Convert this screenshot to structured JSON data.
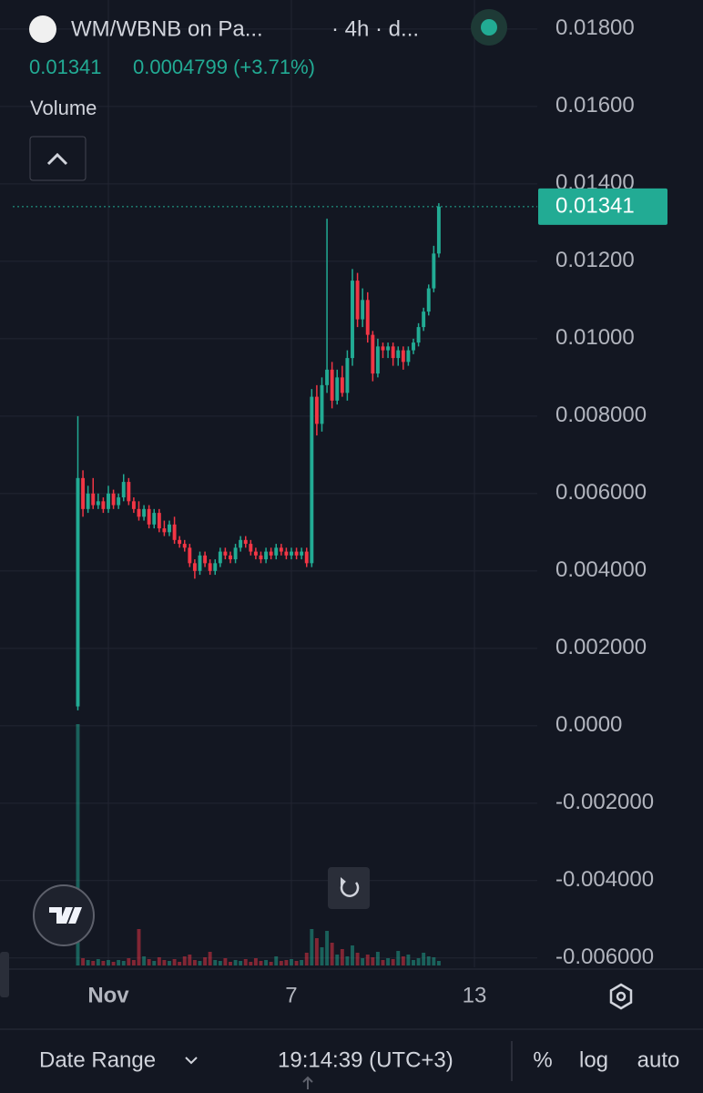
{
  "header": {
    "title": "WM/WBNB on Pa...",
    "interval": "· 4h · d...",
    "price": "0.01341",
    "change": "0.0004799 (+3.71%)",
    "volume_label": "Volume"
  },
  "footer": {
    "date_range": "Date Range",
    "time": "19:14:39 (UTC+3)",
    "percent": "%",
    "log": "log",
    "auto": "auto"
  },
  "chart_data": {
    "type": "candlestick",
    "up_color": "#22ab94",
    "down_color": "#f23645",
    "grid": true,
    "last_price": 0.01341,
    "xlim": [
      -2.552,
      15.06
    ],
    "xticks": [
      {
        "value": 1,
        "label": "Nov"
      },
      7,
      13
    ],
    "ylim": [
      -0.00624,
      0.01875
    ],
    "yticks": [
      {
        "value": 0.018,
        "label": "0.01800"
      },
      {
        "value": 0.016,
        "label": "0.01600"
      },
      {
        "value": 0.014,
        "label": "0.01400"
      },
      {
        "value": 0.012,
        "label": "0.01200"
      },
      {
        "value": 0.01,
        "label": "0.01000"
      },
      {
        "value": 0.008,
        "label": "0.008000"
      },
      {
        "value": 0.006,
        "label": "0.006000"
      },
      {
        "value": 0.004,
        "label": "0.004000"
      },
      {
        "value": 0.002,
        "label": "0.002000"
      },
      {
        "value": 0,
        "label": "0.0000"
      },
      {
        "value": -0.002,
        "label": "-0.002000"
      },
      {
        "value": -0.004,
        "label": "-0.004000"
      },
      {
        "value": -0.006,
        "label": "-0.006000"
      }
    ],
    "x": [
      0,
      0.167,
      0.333,
      0.5,
      0.667,
      0.833,
      1,
      1.167,
      1.333,
      1.5,
      1.667,
      1.833,
      2,
      2.167,
      2.333,
      2.5,
      2.667,
      2.833,
      3,
      3.167,
      3.333,
      3.5,
      3.667,
      3.833,
      4,
      4.167,
      4.333,
      4.5,
      4.667,
      4.833,
      5,
      5.167,
      5.333,
      5.5,
      5.667,
      5.833,
      6,
      6.167,
      6.333,
      6.5,
      6.667,
      6.833,
      7,
      7.167,
      7.333,
      7.5,
      7.667,
      7.833,
      8,
      8.167,
      8.333,
      8.5,
      8.667,
      8.833,
      9,
      9.167,
      9.333,
      9.5,
      9.667,
      9.833,
      10,
      10.167,
      10.333,
      10.5,
      10.667,
      10.833,
      11,
      11.167,
      11.333,
      11.5,
      11.667,
      11.833
    ],
    "open": [
      0.0005,
      0.0064,
      0.0056,
      0.006,
      0.0057,
      0.0058,
      0.0056,
      0.006,
      0.0057,
      0.0059,
      0.0063,
      0.0058,
      0.0056,
      0.0054,
      0.0056,
      0.0052,
      0.0055,
      0.0051,
      0.005,
      0.0052,
      0.0048,
      0.0047,
      0.0046,
      0.0042,
      0.004,
      0.0044,
      0.0042,
      0.004,
      0.0042,
      0.0045,
      0.0044,
      0.0043,
      0.0046,
      0.0048,
      0.0047,
      0.0045,
      0.0044,
      0.0043,
      0.0045,
      0.0044,
      0.0046,
      0.0045,
      0.0044,
      0.0045,
      0.0044,
      0.0045,
      0.0042,
      0.0085,
      0.0078,
      0.0088,
      0.0092,
      0.0084,
      0.009,
      0.0086,
      0.0095,
      0.0115,
      0.0105,
      0.011,
      0.0101,
      0.0091,
      0.0098,
      0.0097,
      0.0098,
      0.0095,
      0.0097,
      0.0094,
      0.0097,
      0.0099,
      0.0103,
      0.0107,
      0.0113,
      0.0122
    ],
    "high": [
      0.008,
      0.0066,
      0.0062,
      0.0064,
      0.006,
      0.0059,
      0.0062,
      0.0061,
      0.006,
      0.0065,
      0.0064,
      0.0059,
      0.0058,
      0.0057,
      0.0057,
      0.0056,
      0.0056,
      0.0053,
      0.0053,
      0.0054,
      0.0049,
      0.0048,
      0.0047,
      0.0043,
      0.0045,
      0.0045,
      0.0043,
      0.0043,
      0.0046,
      0.0046,
      0.0045,
      0.0047,
      0.0049,
      0.0049,
      0.0048,
      0.0046,
      0.0045,
      0.0046,
      0.0046,
      0.0047,
      0.0047,
      0.0046,
      0.0046,
      0.0046,
      0.0046,
      0.0046,
      0.0087,
      0.0088,
      0.009,
      0.0131,
      0.0094,
      0.0092,
      0.0093,
      0.0097,
      0.0118,
      0.0117,
      0.0113,
      0.0112,
      0.0102,
      0.01,
      0.0099,
      0.0099,
      0.0099,
      0.0098,
      0.0098,
      0.0098,
      0.01,
      0.0104,
      0.0108,
      0.0114,
      0.0124,
      0.0135
    ],
    "low": [
      0.0004,
      0.0054,
      0.0055,
      0.0056,
      0.0056,
      0.0055,
      0.0055,
      0.0056,
      0.0056,
      0.0058,
      0.0057,
      0.0055,
      0.0053,
      0.0053,
      0.0051,
      0.0051,
      0.005,
      0.0049,
      0.0049,
      0.0047,
      0.0046,
      0.0045,
      0.0041,
      0.0038,
      0.0039,
      0.0041,
      0.0039,
      0.0039,
      0.0041,
      0.0043,
      0.0042,
      0.0042,
      0.0045,
      0.0046,
      0.0044,
      0.0043,
      0.0042,
      0.0042,
      0.0043,
      0.0043,
      0.0044,
      0.0043,
      0.0043,
      0.0043,
      0.0043,
      0.0041,
      0.0041,
      0.0075,
      0.0076,
      0.0086,
      0.0082,
      0.0083,
      0.0085,
      0.0084,
      0.0093,
      0.0103,
      0.0103,
      0.0099,
      0.0089,
      0.009,
      0.0095,
      0.0095,
      0.0093,
      0.0093,
      0.0092,
      0.0093,
      0.0096,
      0.0098,
      0.0102,
      0.0106,
      0.0112,
      0.0121
    ],
    "close": [
      0.0064,
      0.0056,
      0.006,
      0.0057,
      0.0058,
      0.0056,
      0.006,
      0.0057,
      0.0059,
      0.0063,
      0.0058,
      0.0056,
      0.0054,
      0.0056,
      0.0052,
      0.0055,
      0.0051,
      0.005,
      0.0052,
      0.0048,
      0.0047,
      0.0046,
      0.0042,
      0.004,
      0.0044,
      0.0042,
      0.004,
      0.0042,
      0.0045,
      0.0044,
      0.0043,
      0.0046,
      0.0048,
      0.0047,
      0.0045,
      0.0044,
      0.0043,
      0.0045,
      0.0044,
      0.0046,
      0.0045,
      0.0044,
      0.0045,
      0.0044,
      0.0045,
      0.0042,
      0.0085,
      0.0078,
      0.0088,
      0.0092,
      0.0084,
      0.009,
      0.0086,
      0.0095,
      0.0115,
      0.0105,
      0.011,
      0.0101,
      0.0091,
      0.0098,
      0.0097,
      0.0098,
      0.0095,
      0.0097,
      0.0094,
      0.0097,
      0.0099,
      0.0103,
      0.0107,
      0.0113,
      0.0122,
      0.01341
    ],
    "volume": [
      265,
      8,
      6,
      5,
      7,
      5,
      6,
      4,
      6,
      5,
      8,
      6,
      40,
      10,
      7,
      5,
      9,
      6,
      5,
      7,
      4,
      10,
      12,
      6,
      5,
      9,
      15,
      6,
      5,
      8,
      4,
      6,
      5,
      7,
      4,
      8,
      5,
      6,
      4,
      10,
      5,
      6,
      7,
      5,
      6,
      14,
      40,
      30,
      20,
      38,
      25,
      12,
      18,
      10,
      22,
      14,
      8,
      12,
      9,
      15,
      6,
      8,
      7,
      16,
      10,
      12,
      6,
      8,
      14,
      10,
      9,
      5
    ]
  }
}
